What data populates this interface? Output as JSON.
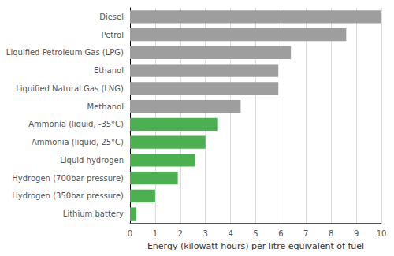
{
  "chart_data": {
    "type": "bar",
    "orientation": "horizontal",
    "categories": [
      "Lithium battery",
      "Hydrogen (350bar pressure)",
      "Hydrogen (700bar pressure)",
      "Liquid hydrogen",
      "Ammonia (liquid, 25°C)",
      "Ammonia (liquid, -35°C)",
      "Methanol",
      "Liquified Natural Gas (LNG)",
      "Ethanol",
      "Liquified Petroleum Gas (LPG)",
      "Petrol",
      "Diesel"
    ],
    "values": [
      0.25,
      1.0,
      1.9,
      2.6,
      3.0,
      3.5,
      4.4,
      5.9,
      5.9,
      6.4,
      8.6,
      10.0
    ],
    "colors": [
      "#4caf50",
      "#4caf50",
      "#4caf50",
      "#4caf50",
      "#4caf50",
      "#4caf50",
      "#9e9e9e",
      "#9e9e9e",
      "#9e9e9e",
      "#9e9e9e",
      "#9e9e9e",
      "#9e9e9e"
    ],
    "xlabel": "Energy (kilowatt hours) per litre equivalent of fuel",
    "xlim": [
      0,
      10
    ],
    "xticks": [
      0,
      1,
      2,
      3,
      4,
      5,
      6,
      7,
      8,
      9,
      10
    ],
    "grid": true
  }
}
